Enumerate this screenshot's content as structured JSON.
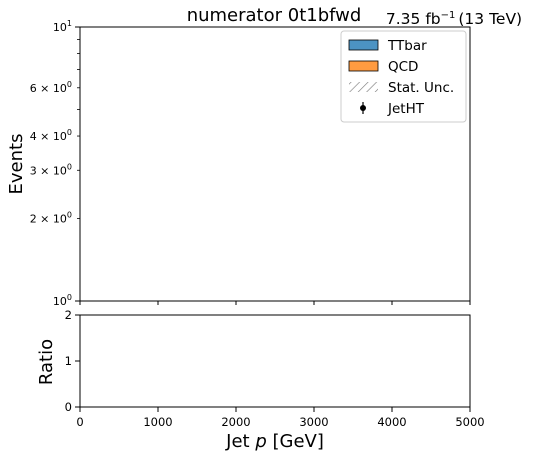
{
  "chart_data": [
    {
      "type": "bar",
      "title": "numerator  0t1bfwd",
      "lumi_label": {
        "value": "7.35 fb",
        "exponent": "−1",
        "energy": "(13 TeV)"
      },
      "ylabel": "Events",
      "yscale": "log",
      "ylim": [
        1,
        10
      ],
      "xlim": [
        0,
        5000
      ],
      "y_major_ticks": [
        {
          "value": 1,
          "base": "10",
          "exp": "0"
        },
        {
          "value": 10,
          "base": "10",
          "exp": "1"
        }
      ],
      "y_minor_labeled_ticks": [
        {
          "value": 2,
          "mant": "2",
          "base": "10",
          "exp": "0"
        },
        {
          "value": 3,
          "mant": "3",
          "base": "10",
          "exp": "0"
        },
        {
          "value": 4,
          "mant": "4",
          "base": "10",
          "exp": "0"
        },
        {
          "value": 6,
          "mant": "6",
          "base": "10",
          "exp": "0"
        }
      ],
      "y_minor_unlabeled_ticks": [
        5,
        7,
        8,
        9
      ],
      "legend_position": "top-right",
      "legend": [
        {
          "label": "TTbar",
          "kind": "patch",
          "color": "#4c93c3"
        },
        {
          "label": "QCD",
          "kind": "patch",
          "color": "#ff9b41"
        },
        {
          "label": "Stat. Unc.",
          "kind": "hatch"
        },
        {
          "label": "JetHT",
          "kind": "errorbar"
        }
      ],
      "series": [
        {
          "name": "TTbar",
          "values": []
        },
        {
          "name": "QCD",
          "values": []
        },
        {
          "name": "JetHT",
          "values": []
        }
      ]
    },
    {
      "type": "line",
      "ylabel": "Ratio",
      "xlabel": {
        "prefix": "Jet ",
        "var": "p",
        "suffix": " [GeV]"
      },
      "xlim": [
        0,
        5000
      ],
      "ylim": [
        0,
        2
      ],
      "x_ticks": [
        "0",
        "1000",
        "2000",
        "3000",
        "4000",
        "5000"
      ],
      "y_ticks": [
        "0",
        "1",
        "2"
      ],
      "series": []
    }
  ]
}
